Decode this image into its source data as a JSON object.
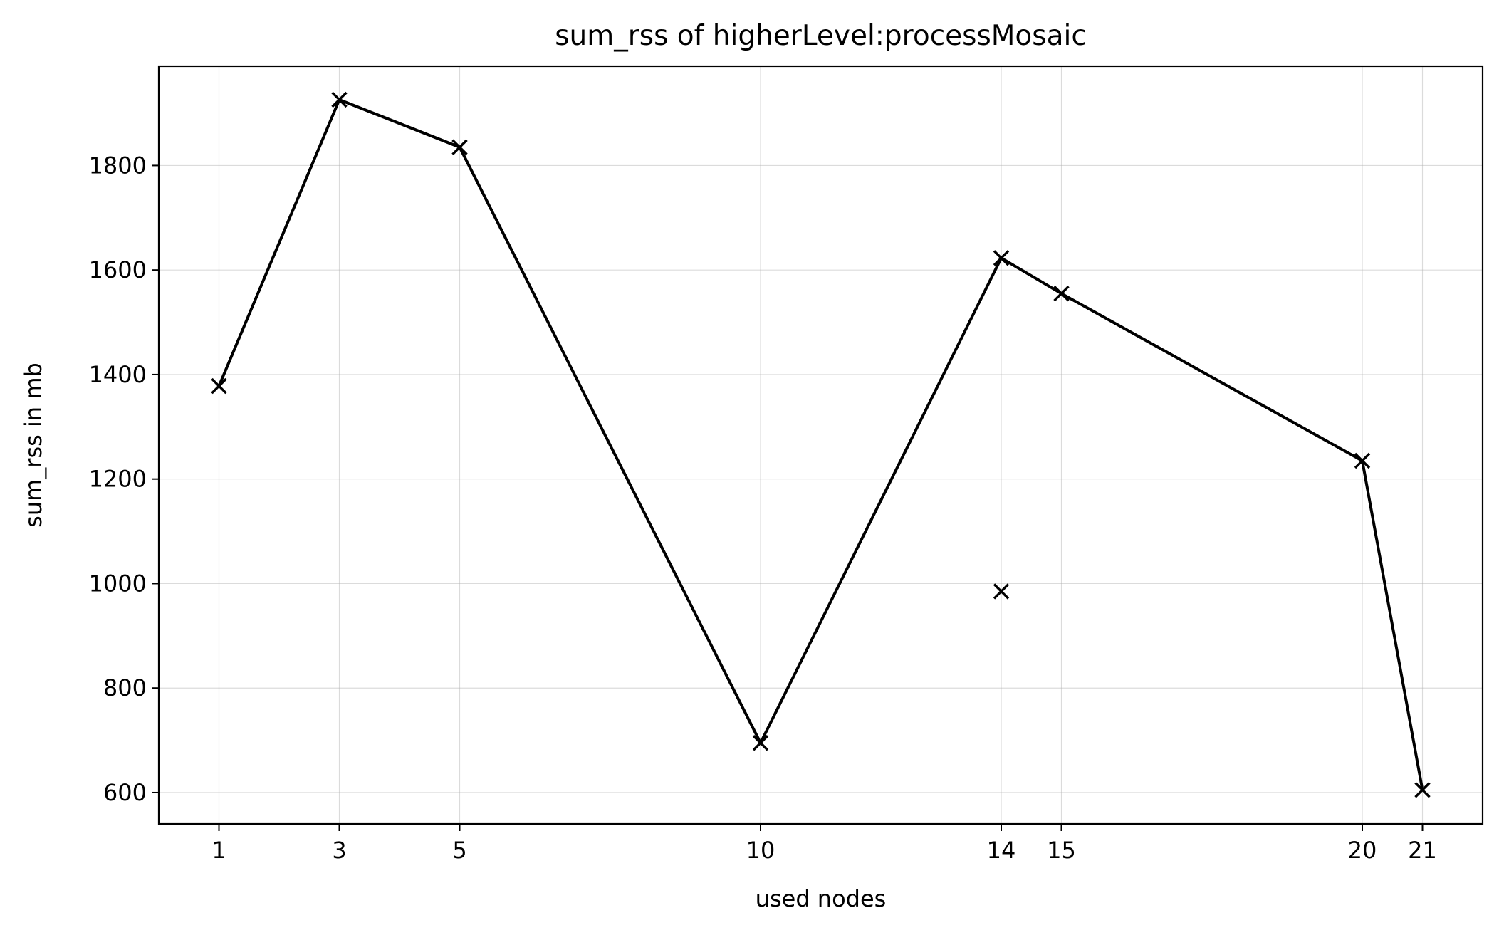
{
  "chart_data": {
    "type": "line",
    "title": "sum_rss of higherLevel:processMosaic",
    "xlabel": "used nodes",
    "ylabel": "sum_rss in mb",
    "xticks": [
      1,
      3,
      5,
      10,
      14,
      15,
      20,
      21
    ],
    "yticks": [
      600,
      800,
      1000,
      1200,
      1400,
      1600,
      1800
    ],
    "xlim": [
      0,
      22
    ],
    "ylim": [
      540,
      1990
    ],
    "grid": true,
    "series": [
      {
        "points": [
          [
            1,
            1378
          ],
          [
            3,
            1926
          ],
          [
            5,
            1835
          ],
          [
            10,
            695
          ],
          [
            14,
            1623
          ],
          [
            15,
            1555
          ],
          [
            20,
            1235
          ],
          [
            21,
            605
          ]
        ],
        "line": true,
        "marker": "x",
        "color": "#000000"
      },
      {
        "points": [
          [
            14,
            985
          ]
        ],
        "line": false,
        "marker": "x",
        "color": "#000000"
      }
    ]
  }
}
